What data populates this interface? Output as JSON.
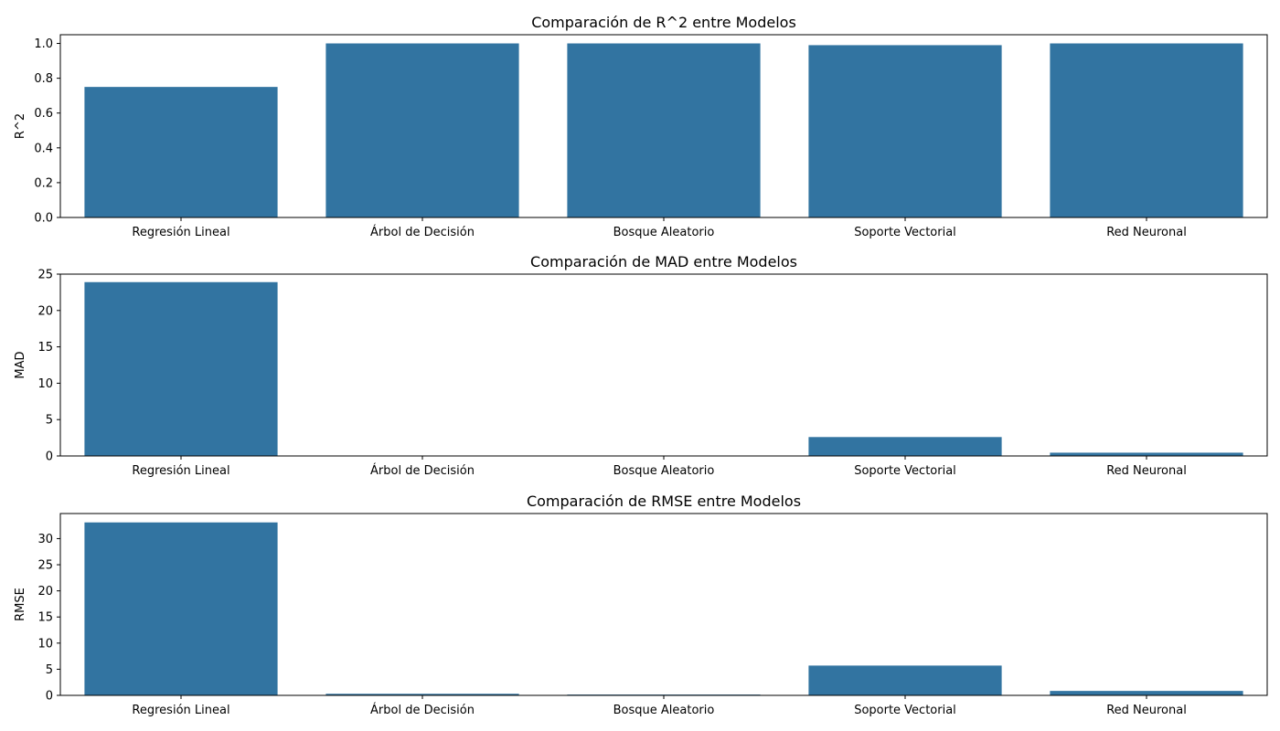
{
  "colors": {
    "bar": "#3274a1",
    "axes": "#000000",
    "background": "#ffffff"
  },
  "chart_data": [
    {
      "type": "bar",
      "title": "Comparación de R^2 entre Modelos",
      "xlabel": "",
      "ylabel": "R^2",
      "categories": [
        "Regresión Lineal",
        "Árbol de Decisión",
        "Bosque Aleatorio",
        "Soporte Vectorial",
        "Red Neuronal"
      ],
      "values": [
        0.75,
        1.0,
        1.0,
        0.99,
        1.0
      ],
      "ylim": [
        0,
        1.05
      ],
      "yticks": [
        0.0,
        0.2,
        0.4,
        0.6,
        0.8,
        1.0
      ],
      "ytick_labels": [
        "0.0",
        "0.2",
        "0.4",
        "0.6",
        "0.8",
        "1.0"
      ],
      "grid": false
    },
    {
      "type": "bar",
      "title": "Comparación de MAD entre Modelos",
      "xlabel": "",
      "ylabel": "MAD",
      "categories": [
        "Regresión Lineal",
        "Árbol de Decisión",
        "Bosque Aleatorio",
        "Soporte Vectorial",
        "Red Neuronal"
      ],
      "values": [
        23.9,
        0.05,
        0.05,
        2.6,
        0.45
      ],
      "ylim": [
        0,
        25
      ],
      "yticks": [
        0,
        5,
        10,
        15,
        20,
        25
      ],
      "ytick_labels": [
        "0",
        "5",
        "10",
        "15",
        "20",
        "25"
      ],
      "grid": false
    },
    {
      "type": "bar",
      "title": "Comparación de RMSE entre Modelos",
      "xlabel": "",
      "ylabel": "RMSE",
      "categories": [
        "Regresión Lineal",
        "Árbol de Decisión",
        "Bosque Aleatorio",
        "Soporte Vectorial",
        "Red Neuronal"
      ],
      "values": [
        33.1,
        0.3,
        0.15,
        5.7,
        0.85
      ],
      "ylim": [
        0,
        34.8
      ],
      "yticks": [
        0,
        5,
        10,
        15,
        20,
        25,
        30
      ],
      "ytick_labels": [
        "0",
        "5",
        "10",
        "15",
        "20",
        "25",
        "30"
      ],
      "grid": false
    }
  ]
}
